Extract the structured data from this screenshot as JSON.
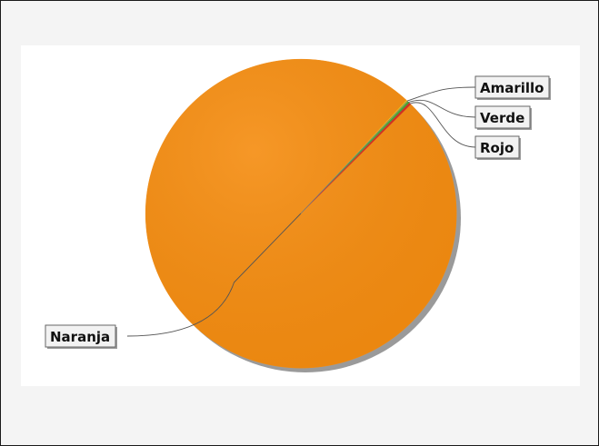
{
  "chart_data": {
    "type": "pie",
    "title": "",
    "slices": [
      {
        "label": "Naranja",
        "value": 99.4,
        "color": "#f58c0f"
      },
      {
        "label": "Amarillo",
        "value": 0.2,
        "color": "#f5d60f"
      },
      {
        "label": "Verde",
        "value": 0.2,
        "color": "#3fa83a"
      },
      {
        "label": "Rojo",
        "value": 0.2,
        "color": "#d92b1f"
      }
    ],
    "labels_style": "callouts",
    "legend": "none",
    "grid": false
  }
}
